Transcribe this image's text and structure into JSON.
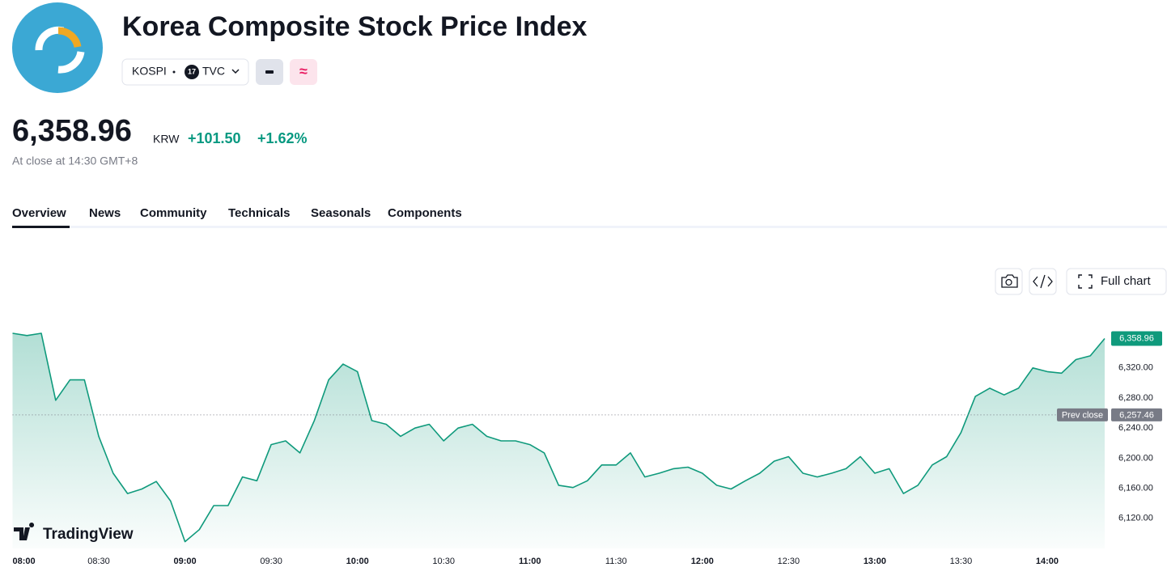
{
  "header": {
    "title": "Korea Composite Stock Price Index",
    "symbol": "KOSPI",
    "exchange": "TVC",
    "price": "6,358.96",
    "currency": "KRW",
    "change": "+101.50",
    "change_percent": "+1.62%",
    "status": "At close at 14:30 GMT+8"
  },
  "tabs": [
    "Overview",
    "News",
    "Community",
    "Technicals",
    "Seasonals",
    "Components"
  ],
  "toolbar": {
    "full_chart": "Full chart"
  },
  "watermark": "TradingView",
  "chart_data": {
    "type": "line",
    "x": [
      "08:00",
      "08:05",
      "08:10",
      "08:15",
      "08:20",
      "08:25",
      "08:30",
      "08:35",
      "08:40",
      "08:45",
      "08:50",
      "08:55",
      "09:00",
      "09:05",
      "09:10",
      "09:15",
      "09:20",
      "09:25",
      "09:30",
      "09:35",
      "09:40",
      "09:45",
      "09:50",
      "09:55",
      "10:00",
      "10:05",
      "10:10",
      "10:15",
      "10:20",
      "10:25",
      "10:30",
      "10:35",
      "10:40",
      "10:45",
      "10:50",
      "10:55",
      "11:00",
      "11:05",
      "11:10",
      "11:15",
      "11:20",
      "11:25",
      "11:30",
      "11:35",
      "11:40",
      "11:45",
      "11:50",
      "11:55",
      "12:00",
      "12:05",
      "12:10",
      "12:15",
      "12:20",
      "12:25",
      "12:30",
      "12:35",
      "12:40",
      "12:45",
      "12:50",
      "12:55",
      "13:00",
      "13:05",
      "13:10",
      "13:15",
      "13:20",
      "13:25",
      "13:30",
      "13:35",
      "13:40",
      "13:45",
      "13:50",
      "13:55",
      "14:00",
      "14:05",
      "14:10",
      "14:15",
      "14:20"
    ],
    "series": [
      {
        "name": "KOSPI",
        "color": "#0f9a7c",
        "values": [
          6366,
          6363,
          6366,
          6277,
          6304,
          6304,
          6229,
          6180,
          6153,
          6159,
          6169,
          6143,
          6089,
          6105,
          6137,
          6137,
          6175,
          6170,
          6218,
          6223,
          6207,
          6250,
          6304,
          6325,
          6315,
          6250,
          6245,
          6229,
          6240,
          6245,
          6223,
          6240,
          6245,
          6229,
          6223,
          6223,
          6218,
          6207,
          6164,
          6161,
          6170,
          6191,
          6191,
          6207,
          6175,
          6180,
          6186,
          6188,
          6180,
          6164,
          6159,
          6170,
          6180,
          6196,
          6202,
          6180,
          6175,
          6180,
          6186,
          6202,
          6180,
          6186,
          6153,
          6164,
          6191,
          6202,
          6234,
          6282,
          6293,
          6284,
          6293,
          6320,
          6315,
          6313,
          6331,
          6336,
          6358.96
        ]
      }
    ],
    "last_value_label": "6,358.96",
    "prev_close": {
      "name": "Prev close",
      "value": 6257.46,
      "label": "6,257.46"
    },
    "xlim": [
      "08:00",
      "14:20"
    ],
    "xticks": [
      "08:00",
      "08:30",
      "09:00",
      "09:30",
      "10:00",
      "10:30",
      "11:00",
      "11:30",
      "12:00",
      "12:30",
      "13:00",
      "13:30",
      "14:00"
    ],
    "ylim": [
      6080,
      6395
    ],
    "yticks": [
      {
        "value": 6120,
        "label": "6,120.00"
      },
      {
        "value": 6160,
        "label": "6,160.00"
      },
      {
        "value": 6200,
        "label": "6,200.00"
      },
      {
        "value": 6240,
        "label": "6,240.00"
      },
      {
        "value": 6280,
        "label": "6,280.00"
      },
      {
        "value": 6320,
        "label": "6,320.00"
      }
    ],
    "grid": false
  }
}
